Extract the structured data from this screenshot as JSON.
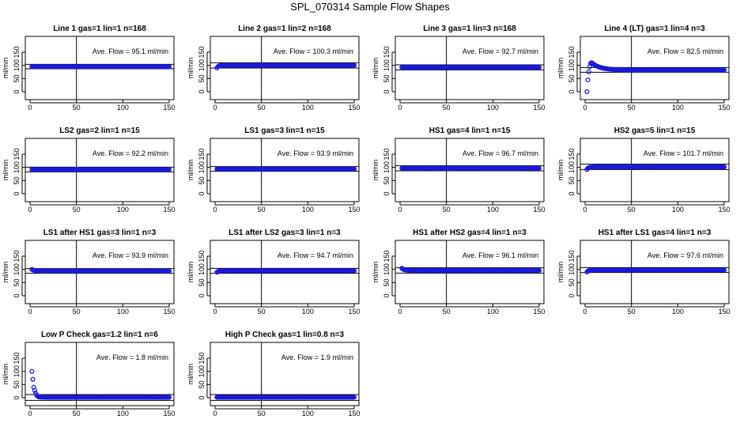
{
  "title": "SPL_070314  Sample Flow Shapes",
  "shared_axes": {
    "ylabel": "ml/min",
    "xlim": [
      0,
      150
    ],
    "ylim": [
      -30,
      210
    ],
    "x_ticks": [
      "0",
      "50",
      "100",
      "150"
    ],
    "x_tick_values": [
      0,
      50,
      100,
      150
    ],
    "y_ticks": [
      "0",
      "50",
      "100",
      "150"
    ],
    "y_tick_values": [
      0,
      50,
      100,
      150
    ],
    "vertical_reference_line_x": 50,
    "point_color": "#1a1adb"
  },
  "chart_data": [
    {
      "type": "scatter",
      "title": "Line 1 gas=1 lin=1 n=168",
      "annotation": "Ave. Flow =  95.1  ml/min",
      "avg": 95.1,
      "ref_lines": [
        104,
        87
      ],
      "shape": "flat",
      "level": 95.1
    },
    {
      "type": "scatter",
      "title": "Line 2 gas=1 lin=2 n=168",
      "annotation": "Ave. Flow =  100.3  ml/min",
      "avg": 100.3,
      "ref_lines": [
        110,
        90
      ],
      "shape": "rise",
      "level": 100.3,
      "start": 90
    },
    {
      "type": "scatter",
      "title": "Line 3 gas=1 lin=3 n=168",
      "annotation": "Ave. Flow =  92.7  ml/min",
      "avg": 92.7,
      "ref_lines": [
        102,
        83
      ],
      "shape": "flat",
      "level": 92.7
    },
    {
      "type": "scatter",
      "title": "Line 4 (LT) gas=1 lin=4 n=3",
      "annotation": "Ave. Flow =  82.5  ml/min",
      "avg": 82.5,
      "ref_lines": [
        92,
        74
      ],
      "shape": "overshoot",
      "level": 82.5,
      "early_points": [
        [
          2,
          0
        ],
        [
          3,
          45
        ],
        [
          4,
          75
        ],
        [
          5,
          95
        ],
        [
          6,
          108
        ],
        [
          7,
          110
        ]
      ]
    },
    {
      "type": "scatter",
      "title": "LS2 gas=2 lin=1 n=15",
      "annotation": "Ave. Flow =  92.2  ml/min",
      "avg": 92.2,
      "ref_lines": [
        101,
        83
      ],
      "shape": "flat",
      "level": 92.2
    },
    {
      "type": "scatter",
      "title": "LS1 gas=3 lin=1 n=15",
      "annotation": "Ave. Flow =  93.9  ml/min",
      "avg": 93.9,
      "ref_lines": [
        103,
        85
      ],
      "shape": "flat",
      "level": 93.9
    },
    {
      "type": "scatter",
      "title": "HS1 gas=4 lin=1 n=15",
      "annotation": "Ave. Flow =  96.7  ml/min",
      "avg": 96.7,
      "ref_lines": [
        106,
        87
      ],
      "shape": "flat",
      "level": 96.7
    },
    {
      "type": "scatter",
      "title": "HS2 gas=5 lin=1 n=15",
      "annotation": "Ave. Flow =  101.7  ml/min",
      "avg": 101.7,
      "ref_lines": [
        112,
        92
      ],
      "shape": "rise",
      "level": 101.7,
      "start": 92
    },
    {
      "type": "scatter",
      "title": "LS1 after HS1 gas=3 lin=1 n=3",
      "annotation": "Ave. Flow =  93.9  ml/min",
      "avg": 93.9,
      "ref_lines": [
        103,
        85
      ],
      "shape": "decay",
      "level": 93.9,
      "start": 100
    },
    {
      "type": "scatter",
      "title": "LS1 after LS2 gas=3 lin=1 n=3",
      "annotation": "Ave. Flow =  94.7  ml/min",
      "avg": 94.7,
      "ref_lines": [
        104,
        85
      ],
      "shape": "rise",
      "level": 94.7,
      "start": 89
    },
    {
      "type": "scatter",
      "title": "HS1 after HS2 gas=4 lin=1 n=3",
      "annotation": "Ave. Flow =  96.1  ml/min",
      "avg": 96.1,
      "ref_lines": [
        106,
        86
      ],
      "shape": "decay",
      "level": 96.1,
      "start": 104
    },
    {
      "type": "scatter",
      "title": "HS1 after LS1 gas=4 lin=1 n=3",
      "annotation": "Ave. Flow =  97.6  ml/min",
      "avg": 97.6,
      "ref_lines": [
        107,
        88
      ],
      "shape": "rise",
      "level": 97.6,
      "start": 90
    },
    {
      "type": "scatter",
      "title": "Low P Check gas=1.2 lin=1 n=6",
      "annotation": "Ave. Flow =  1.8  ml/min",
      "avg": 1.8,
      "ref_lines": [
        12,
        -10
      ],
      "shape": "low",
      "level": 1.8,
      "early_points": [
        [
          2,
          100
        ],
        [
          3,
          70
        ],
        [
          4,
          40
        ],
        [
          5,
          28
        ],
        [
          6,
          18
        ],
        [
          7,
          10
        ],
        [
          8,
          6
        ],
        [
          9,
          4
        ]
      ]
    },
    {
      "type": "scatter",
      "title": "High P Check gas=1 lin=0.8 n=3",
      "annotation": "Ave. Flow =  1.9  ml/min",
      "avg": 1.9,
      "ref_lines": [
        12,
        -10
      ],
      "shape": "flat",
      "level": 1.9
    }
  ]
}
